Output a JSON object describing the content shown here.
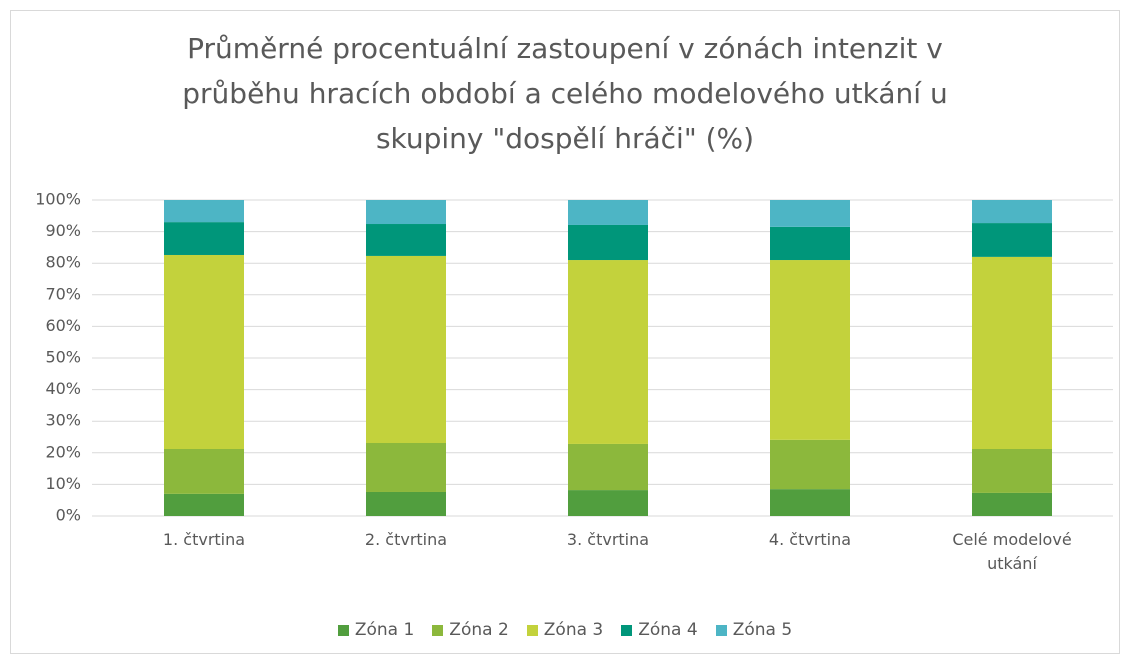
{
  "chart_data": {
    "type": "stacked_bar_100",
    "title": "Průměrné procentuální zastoupení v zónách intenzit v průběhu hracích období a celého modelového utkání u skupiny \"dospělí hráči\" (%)",
    "categories": [
      "1. čtvrtina",
      "2. čtvrtina",
      "3. čtvrtina",
      "4. čtvrtina",
      "Celé modelové utkání"
    ],
    "series": [
      {
        "name": "Zóna 1",
        "color": "#519e3e",
        "values": [
          7.0,
          7.6,
          8.2,
          8.5,
          7.3
        ]
      },
      {
        "name": "Zóna 2",
        "color": "#8cb83c",
        "values": [
          14.2,
          15.5,
          14.6,
          15.6,
          13.9
        ]
      },
      {
        "name": "Zóna 3",
        "color": "#c3d23c",
        "values": [
          61.4,
          59.2,
          58.2,
          56.9,
          60.8
        ]
      },
      {
        "name": "Zóna 4",
        "color": "#00967a",
        "values": [
          10.4,
          10.1,
          11.1,
          10.5,
          10.7
        ]
      },
      {
        "name": "Zóna 5",
        "color": "#4db5c5",
        "values": [
          7.0,
          7.6,
          7.9,
          8.5,
          7.3
        ]
      }
    ],
    "ylim": [
      0,
      100
    ],
    "yticks": [
      {
        "value": 0,
        "label": "0%"
      },
      {
        "value": 10,
        "label": "10%"
      },
      {
        "value": 20,
        "label": "20%"
      },
      {
        "value": 30,
        "label": "30%"
      },
      {
        "value": 40,
        "label": "40%"
      },
      {
        "value": 50,
        "label": "50%"
      },
      {
        "value": 60,
        "label": "60%"
      },
      {
        "value": 70,
        "label": "70%"
      },
      {
        "value": 80,
        "label": "80%"
      },
      {
        "value": 90,
        "label": "90%"
      },
      {
        "value": 100,
        "label": "100%"
      }
    ],
    "grid": true,
    "legend": "bottom"
  }
}
